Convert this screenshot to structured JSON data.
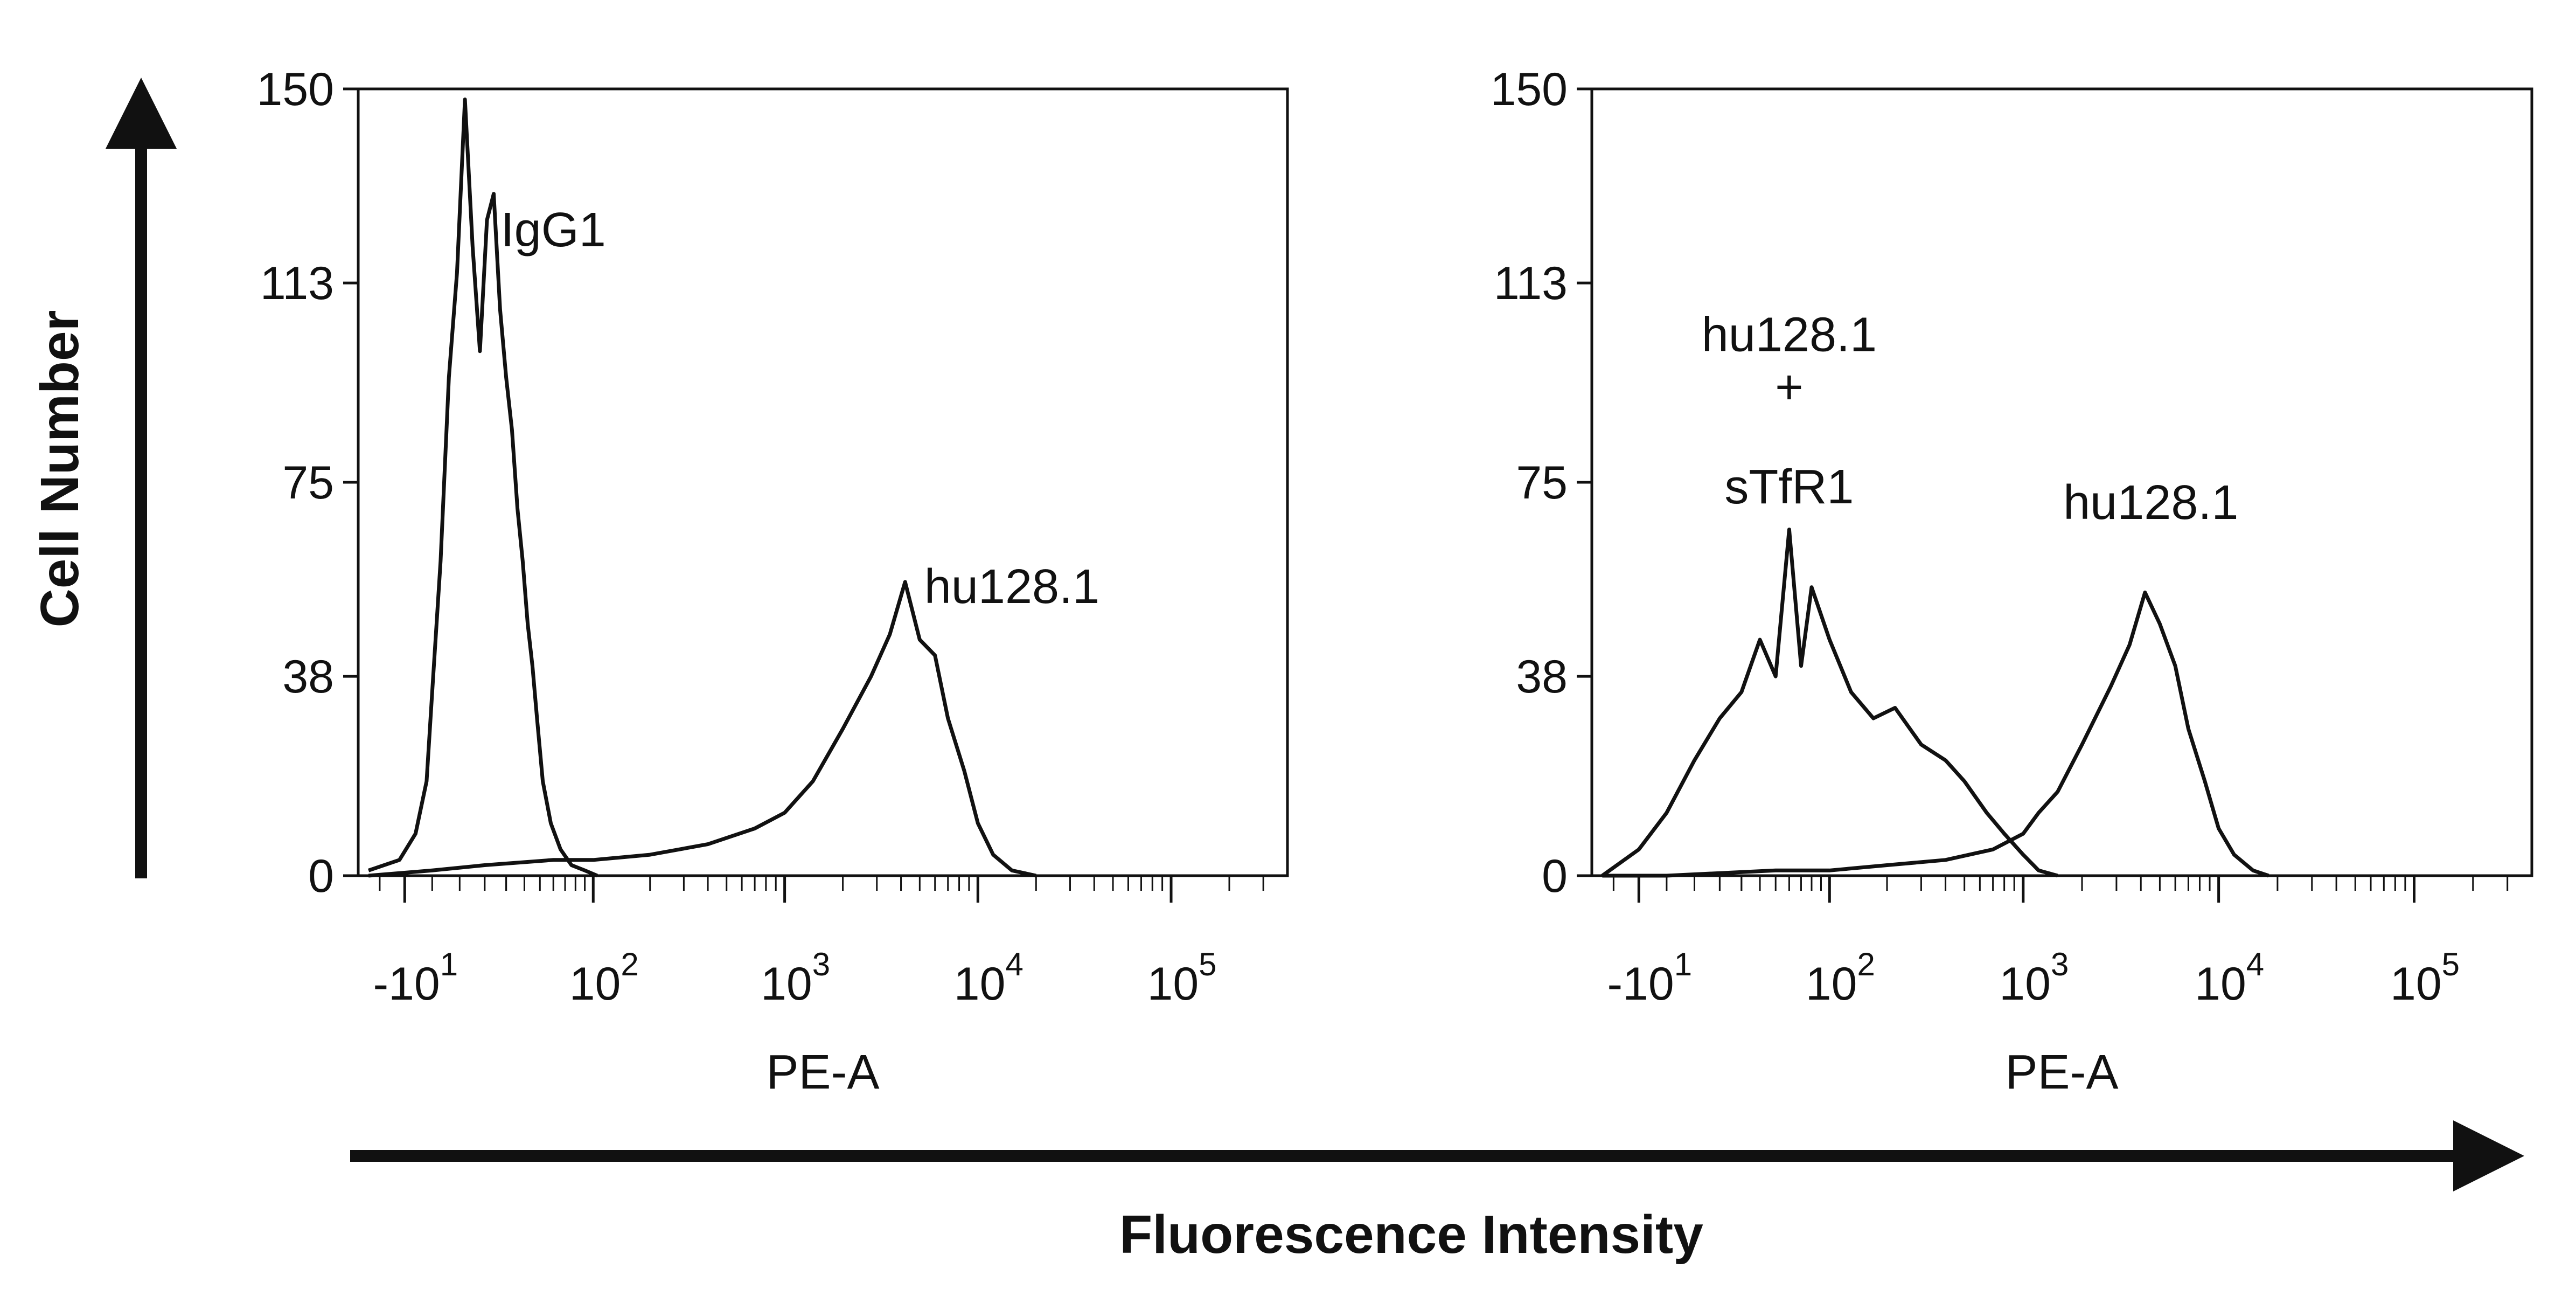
{
  "figure": {
    "y_label": "Cell Number",
    "x_label": "Fluorescence Intensity"
  },
  "chart_data": [
    {
      "type": "line",
      "panel": "left",
      "xlabel": "PE-A",
      "ylabel": "",
      "x_scale": "biexponential",
      "xlim": [
        -30,
        400000
      ],
      "ylim": [
        0,
        150
      ],
      "yticks": [
        {
          "value": 0,
          "label": "0"
        },
        {
          "value": 38,
          "label": "38"
        },
        {
          "value": 75,
          "label": "75"
        },
        {
          "value": 113,
          "label": "113"
        },
        {
          "value": 150,
          "label": "150"
        }
      ],
      "xticks": [
        {
          "value": -10,
          "base": "-10",
          "exp": "1"
        },
        {
          "value": 100,
          "base": "10",
          "exp": "2"
        },
        {
          "value": 1000,
          "base": "10",
          "exp": "3"
        },
        {
          "value": 10000,
          "base": "10",
          "exp": "4"
        },
        {
          "value": 100000,
          "base": "10",
          "exp": "5"
        }
      ],
      "annotations": [
        {
          "text": "IgG1",
          "x": 60,
          "y": 120
        },
        {
          "text": "hu128.1",
          "x": 15000,
          "y": 52
        }
      ],
      "series": [
        {
          "annotation": "IgG1",
          "x": [
            -25,
            -12,
            -6,
            -2,
            0,
            3,
            6,
            9,
            12,
            15,
            18,
            21,
            24,
            27,
            30,
            33,
            36,
            39,
            42,
            45,
            48,
            52,
            58,
            66,
            76,
            90,
            105
          ],
          "y": [
            1,
            3,
            8,
            18,
            35,
            60,
            95,
            115,
            148,
            120,
            100,
            125,
            130,
            108,
            95,
            85,
            70,
            60,
            48,
            40,
            30,
            18,
            10,
            5,
            2,
            1,
            0
          ]
        },
        {
          "annotation": "hu128.1",
          "x": [
            -25,
            0,
            20,
            60,
            100,
            200,
            400,
            700,
            1000,
            1400,
            2000,
            2800,
            3500,
            4200,
            5000,
            6000,
            7000,
            8500,
            10000,
            12000,
            15000,
            20000
          ],
          "y": [
            0,
            1,
            2,
            3,
            3,
            4,
            6,
            9,
            12,
            18,
            28,
            38,
            46,
            56,
            45,
            42,
            30,
            20,
            10,
            4,
            1,
            0
          ]
        }
      ]
    },
    {
      "type": "line",
      "panel": "right",
      "xlabel": "PE-A",
      "ylabel": "",
      "x_scale": "biexponential",
      "xlim": [
        -30,
        400000
      ],
      "ylim": [
        0,
        150
      ],
      "yticks": [
        {
          "value": 0,
          "label": "0"
        },
        {
          "value": 38,
          "label": "38"
        },
        {
          "value": 75,
          "label": "75"
        },
        {
          "value": 113,
          "label": "113"
        },
        {
          "value": 150,
          "label": "150"
        }
      ],
      "xticks": [
        {
          "value": -10,
          "base": "-10",
          "exp": "1"
        },
        {
          "value": 100,
          "base": "10",
          "exp": "2"
        },
        {
          "value": 1000,
          "base": "10",
          "exp": "3"
        },
        {
          "value": 10000,
          "base": "10",
          "exp": "4"
        },
        {
          "value": 100000,
          "base": "10",
          "exp": "5"
        }
      ],
      "annotations": [
        {
          "text": "hu128.1",
          "x": 60,
          "y": 100
        },
        {
          "text": "+",
          "x": 60,
          "y": 90
        },
        {
          "text": "sTfR1",
          "x": 60,
          "y": 71
        },
        {
          "text": "hu128.1",
          "x": 4500,
          "y": 68
        }
      ],
      "series": [
        {
          "annotation": "hu128.1 + sTfR1",
          "x": [
            -25,
            -10,
            0,
            10,
            20,
            30,
            40,
            50,
            60,
            70,
            80,
            100,
            130,
            170,
            220,
            300,
            400,
            500,
            650,
            800,
            1000,
            1200,
            1500
          ],
          "y": [
            0,
            5,
            12,
            22,
            30,
            35,
            45,
            38,
            66,
            40,
            55,
            45,
            35,
            30,
            32,
            25,
            22,
            18,
            12,
            8,
            4,
            1,
            0
          ]
        },
        {
          "annotation": "hu128.1",
          "x": [
            -25,
            0,
            50,
            100,
            200,
            400,
            700,
            1000,
            1200,
            1500,
            2000,
            2800,
            3500,
            4200,
            5000,
            6000,
            7000,
            8500,
            10000,
            12000,
            15000,
            18000
          ],
          "y": [
            0,
            0,
            1,
            1,
            2,
            3,
            5,
            8,
            12,
            16,
            25,
            36,
            44,
            54,
            48,
            40,
            28,
            18,
            9,
            4,
            1,
            0
          ]
        }
      ]
    }
  ]
}
